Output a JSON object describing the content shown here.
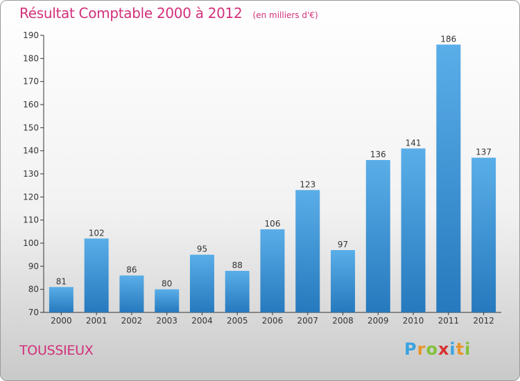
{
  "title": "Résultat Comptable 2000 à 2012",
  "subtitle": "(en milliers d'€)",
  "commune": "TOUSSIEUX",
  "logo": {
    "text": "Proxiti",
    "letters": [
      "P",
      "r",
      "o",
      "x",
      "i",
      "t",
      "i"
    ],
    "colors": [
      "#3aa3e0",
      "#e8962c",
      "#84c13a",
      "#d8322f",
      "#3aa3e0",
      "#e8962c",
      "#84c13a"
    ]
  },
  "colors": {
    "title": "#d2307a",
    "bar_top": "#5aaee8",
    "bar_bottom": "#2679bd"
  },
  "chart_data": {
    "type": "bar",
    "title": "Résultat Comptable 2000 à 2012",
    "categories": [
      "2000",
      "2001",
      "2002",
      "2003",
      "2004",
      "2005",
      "2006",
      "2007",
      "2008",
      "2009",
      "2010",
      "2011",
      "2012"
    ],
    "values": [
      81,
      102,
      86,
      80,
      95,
      88,
      106,
      123,
      97,
      136,
      141,
      186,
      137
    ],
    "ylim": [
      70,
      190
    ],
    "yticks": [
      70,
      80,
      90,
      100,
      110,
      120,
      130,
      140,
      150,
      160,
      170,
      180,
      190
    ],
    "grid": false,
    "xlabel": "",
    "ylabel": ""
  }
}
